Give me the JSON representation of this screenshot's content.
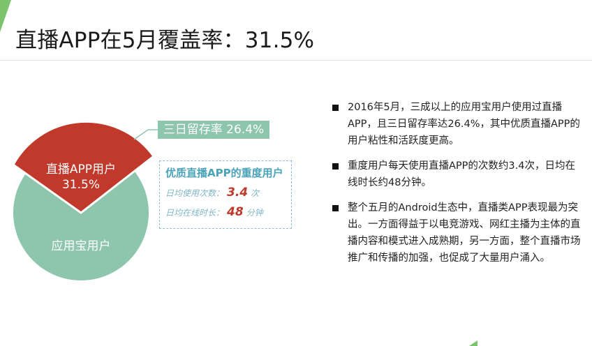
{
  "title": "直播APP在5月覆盖率：31.5%",
  "colors": {
    "accent_green": "#7dc36b",
    "pie_base": "#8dc5ad",
    "pie_highlight": "#c0392b"
  },
  "pie": {
    "highlight_label_line1": "直播APP用户",
    "highlight_label_line2": "31.5%",
    "base_label": "应用宝用户"
  },
  "chart_data": {
    "type": "pie",
    "slices": [
      {
        "label": "直播APP用户",
        "value": 31.5
      },
      {
        "label": "应用宝用户",
        "value": 68.5
      }
    ]
  },
  "callout": "三日留存率 26.4%",
  "heavy_users": {
    "title": "优质直播APP的重度用户",
    "metric1_label": "日均使用次数：",
    "metric1_value": "3.4",
    "metric1_unit": "次",
    "metric2_label": "日均在线时长：",
    "metric2_value": "48",
    "metric2_unit": "分钟"
  },
  "bullets": [
    "2016年5月，三成以上的应用宝用户使用过直播APP，且三日留存率达26.4%，其中优质直播APP的用户粘性和活跃度更高。",
    "重度用户每天使用直播APP的次数约3.4次，日均在线时长约48分钟。",
    "整个五月的Android生态中，直播类APP表现最为突出。一方面得益于以电竞游戏、网红主播为主体的直播内容和模式进入成熟期，另一方面，整个直播市场推广和传播的加强，也促成了大量用户涌入。"
  ]
}
